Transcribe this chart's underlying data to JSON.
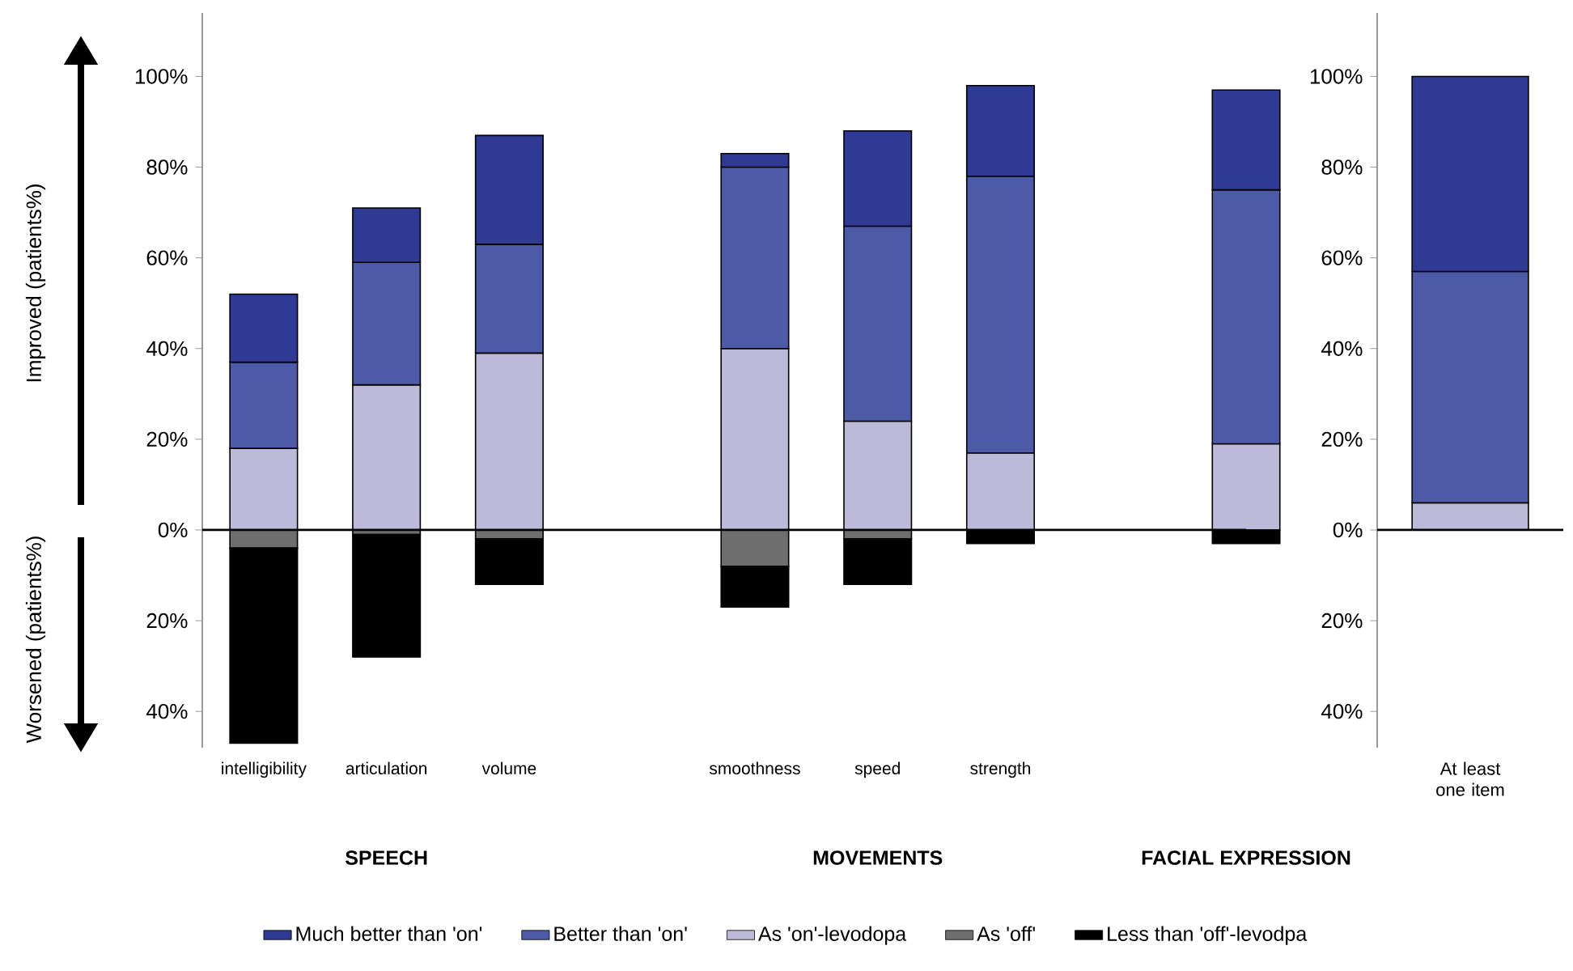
{
  "chart_data": [
    {
      "type": "bar",
      "stacked": true,
      "ylabel": "Improved (patients%)",
      "categories": [
        "intelligibility",
        "articulation",
        "volume",
        null,
        "smoothness",
        "speed",
        "strength",
        null,
        null
      ],
      "series": [
        {
          "name": "As 'on'-levodopa",
          "color": "#bcb9d9",
          "values": [
            18,
            32,
            39,
            null,
            40,
            24,
            17,
            null,
            19
          ]
        },
        {
          "name": "Better than 'on'",
          "color": "#4d5aa8",
          "values": [
            19,
            27,
            24,
            null,
            40,
            43,
            61,
            null,
            56
          ]
        },
        {
          "name": "Much better than 'on'",
          "color": "#2e3a94",
          "values": [
            15,
            12,
            24,
            null,
            3,
            21,
            20,
            null,
            22
          ]
        },
        {
          "name": "As 'off'",
          "color": "#6e6e6e",
          "values": [
            -4,
            -1,
            -2,
            null,
            -8,
            -2,
            0,
            null,
            0
          ]
        },
        {
          "name": "Less than 'off'-levodpa",
          "color": "#000000",
          "values": [
            -43,
            -27,
            -10,
            null,
            -9,
            -10,
            -3,
            null,
            -3
          ]
        }
      ],
      "ylim": [
        -48,
        114
      ],
      "yticks": [
        {
          "value": -40,
          "label": "40%"
        },
        {
          "value": -20,
          "label": "20%"
        },
        {
          "value": 0,
          "label": "0%"
        },
        {
          "value": 20,
          "label": "20%"
        },
        {
          "value": 40,
          "label": "40%"
        },
        {
          "value": 60,
          "label": "60%"
        },
        {
          "value": 80,
          "label": "80%"
        },
        {
          "value": 100,
          "label": "100%"
        }
      ],
      "ref_lines": [
        {
          "axis": "y",
          "value": 0,
          "color": "#000000"
        }
      ],
      "legend": "bottom",
      "annotations": [
        "Worsened (patients%)",
        "SPEECH",
        "MOVEMENTS",
        "FACIAL EXPRESSION"
      ]
    },
    {
      "type": "bar",
      "stacked": true,
      "categories": [
        "At least one item"
      ],
      "series": [
        {
          "color": "#bcb9d9",
          "values": [
            6
          ]
        },
        {
          "color": "#4d5aa8",
          "values": [
            51
          ]
        },
        {
          "color": "#2e3a94",
          "values": [
            43
          ]
        }
      ],
      "ylim": [
        -48,
        114
      ],
      "yticks": [
        {
          "value": -40,
          "label": "40%"
        },
        {
          "value": -20,
          "label": "20%"
        },
        {
          "value": 0,
          "label": "0%"
        },
        {
          "value": 20,
          "label": "20%"
        },
        {
          "value": 40,
          "label": "40%"
        },
        {
          "value": 60,
          "label": "60%"
        },
        {
          "value": 80,
          "label": "80%"
        },
        {
          "value": 100,
          "label": "100%"
        }
      ],
      "ref_lines": [
        {
          "axis": "y",
          "value": 0,
          "color": "#000000"
        }
      ]
    }
  ]
}
